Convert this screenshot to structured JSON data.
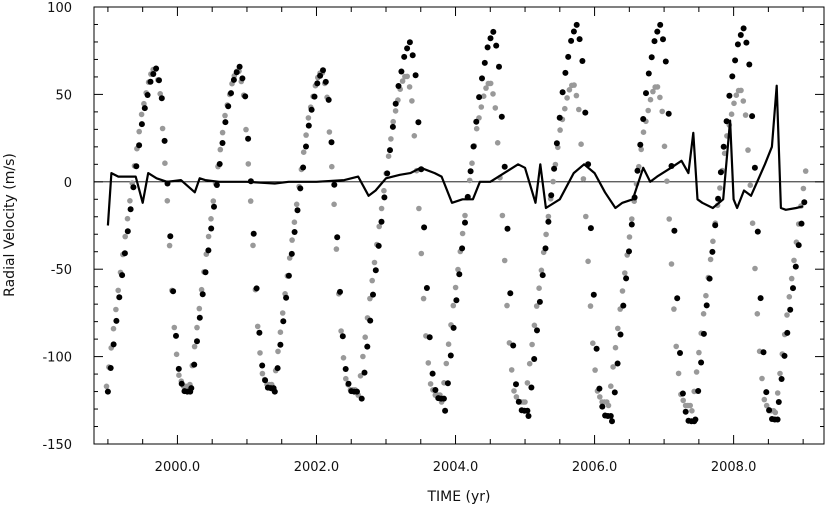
{
  "chart_data": {
    "type": "scatter",
    "title": "",
    "xlabel": "TIME (yr)",
    "ylabel": "Radial Velocity (m/s)",
    "xlim": [
      1998.8,
      2009.3
    ],
    "ylim": [
      -150,
      100
    ],
    "x_ticks": [
      2000.0,
      2002.0,
      2004.0,
      2006.0,
      2008.0
    ],
    "x_tick_labels": [
      "2000.0",
      "2002.0",
      "2004.0",
      "2006.0",
      "2008.0"
    ],
    "x_minor_step": 0.5,
    "y_ticks": [
      -150,
      -100,
      -50,
      0,
      50,
      100
    ],
    "y_tick_labels": [
      "-150",
      "-100",
      "-50",
      "0",
      "50",
      "100"
    ],
    "y_minor_step": 10,
    "grid": false,
    "zero_line": true,
    "period_yr": 1.2,
    "colors": {
      "observed": "#000000",
      "model": "#999999",
      "residual": "#000000",
      "axes": "#000000"
    },
    "series": [
      {
        "role": "observed",
        "marker": "circle",
        "color": "#000000",
        "cycles": [
          {
            "start": 1999.0,
            "max": 65,
            "min": -120
          },
          {
            "start": 2000.2,
            "max": 66,
            "min": -118
          },
          {
            "start": 2001.4,
            "max": 64,
            "min": -120
          },
          {
            "start": 2002.65,
            "max": 80,
            "min": -124
          },
          {
            "start": 2003.85,
            "max": 86,
            "min": -131
          },
          {
            "start": 2005.05,
            "max": 90,
            "min": -134
          },
          {
            "start": 2006.25,
            "max": 90,
            "min": -137
          },
          {
            "start": 2007.45,
            "max": 88,
            "min": -136
          },
          {
            "start": 2008.65,
            "max": 55,
            "min": -126
          }
        ]
      },
      {
        "role": "model",
        "marker": "circle",
        "color": "#999999",
        "cycles": [
          {
            "start": 1998.98,
            "max": 66,
            "min": -117
          },
          {
            "start": 2000.18,
            "max": 65,
            "min": -116
          },
          {
            "start": 2001.38,
            "max": 64,
            "min": -119
          },
          {
            "start": 2002.6,
            "max": 62,
            "min": -122
          },
          {
            "start": 2003.8,
            "max": 58,
            "min": -126
          },
          {
            "start": 2005.0,
            "max": 57,
            "min": -126
          },
          {
            "start": 2006.2,
            "max": 56,
            "min": -128
          },
          {
            "start": 2007.4,
            "max": 54,
            "min": -131
          },
          {
            "start": 2008.6,
            "max": 54,
            "min": -132
          }
        ]
      },
      {
        "role": "residual",
        "type": "line",
        "color": "#000000",
        "x": [
          1999.0,
          1999.05,
          1999.15,
          1999.4,
          1999.5,
          1999.58,
          1999.7,
          1999.85,
          2000.05,
          2000.25,
          2000.32,
          2000.4,
          2000.6,
          2001.0,
          2001.4,
          2001.6,
          2002.0,
          2002.4,
          2002.6,
          2002.75,
          2002.85,
          2003.0,
          2003.2,
          2003.35,
          2003.5,
          2003.7,
          2003.8,
          2003.95,
          2004.1,
          2004.25,
          2004.35,
          2004.5,
          2004.7,
          2004.9,
          2005.0,
          2005.15,
          2005.22,
          2005.3,
          2005.5,
          2005.7,
          2005.85,
          2006.0,
          2006.15,
          2006.3,
          2006.4,
          2006.55,
          2006.7,
          2006.8,
          2006.9,
          2007.1,
          2007.25,
          2007.35,
          2007.42,
          2007.48,
          2007.55,
          2007.7,
          2007.85,
          2007.95,
          2008.0,
          2008.05,
          2008.15,
          2008.25,
          2008.45,
          2008.55,
          2008.62,
          2008.68,
          2008.75,
          2008.9,
          2009.0
        ],
        "y": [
          -25,
          5,
          3,
          3,
          -12,
          5,
          2,
          0,
          1,
          -6,
          2,
          1,
          0,
          0,
          -1,
          0,
          0,
          1,
          3,
          -8,
          -5,
          2,
          4,
          5,
          8,
          5,
          3,
          -12,
          -10,
          -10,
          0,
          0,
          5,
          10,
          8,
          -12,
          10,
          -15,
          -10,
          5,
          10,
          5,
          -6,
          -15,
          -12,
          -10,
          8,
          0,
          3,
          8,
          12,
          5,
          28,
          -10,
          -12,
          -15,
          -10,
          35,
          -10,
          -15,
          -5,
          -8,
          10,
          20,
          55,
          -15,
          -16,
          -15,
          -14
        ]
      }
    ]
  }
}
